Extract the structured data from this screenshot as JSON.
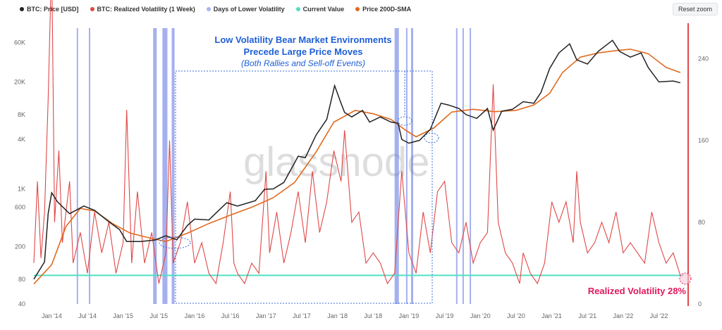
{
  "toolbar": {
    "reset_label": "Reset zoom"
  },
  "legend": [
    {
      "label": "BTC: Price [USD]",
      "color": "#222222"
    },
    {
      "label": "BTC: Realized Volatility (1 Week)",
      "color": "#e04848"
    },
    {
      "label": "Days of Lower Volatility",
      "color": "#a9b4f0"
    },
    {
      "label": "Current Value",
      "color": "#4fe0c3"
    },
    {
      "label": "Price 200D-SMA",
      "color": "#e06a1e"
    }
  ],
  "annotation": {
    "line1": "Low Volatility Bear Market Environments",
    "line2": "Precede Large Price Moves",
    "line3": "(Both Rallies and Sell-off Events)"
  },
  "watermark": "glassnode",
  "callout": "Realized Volatility 28%",
  "chart_data": {
    "type": "line",
    "x_ticks": [
      "Jan '14",
      "Jul '14",
      "Jan '15",
      "Jul '15",
      "Jan '16",
      "Jul '16",
      "Jan '17",
      "Jul '17",
      "Jan '18",
      "Jul '18",
      "Jan '19",
      "Jul '19",
      "Jan '20",
      "Jul '20",
      "Jan '21",
      "Jul '21",
      "Jan '22",
      "Jul '22"
    ],
    "y_left_ticks": [
      "40",
      "80",
      "200",
      "600",
      "1K",
      "4K",
      "8K",
      "20K",
      "60K"
    ],
    "y_left_scale": "log",
    "y_right_ticks": [
      "0",
      "80",
      "160",
      "240"
    ],
    "current_value": 28,
    "price_series": [
      [
        2013.75,
        80
      ],
      [
        2013.9,
        130
      ],
      [
        2013.95,
        500
      ],
      [
        2014.0,
        900
      ],
      [
        2014.08,
        700
      ],
      [
        2014.25,
        500
      ],
      [
        2014.45,
        620
      ],
      [
        2014.6,
        550
      ],
      [
        2014.8,
        400
      ],
      [
        2014.95,
        320
      ],
      [
        2015.05,
        230
      ],
      [
        2015.25,
        230
      ],
      [
        2015.45,
        240
      ],
      [
        2015.6,
        270
      ],
      [
        2015.75,
        240
      ],
      [
        2015.9,
        360
      ],
      [
        2016.0,
        430
      ],
      [
        2016.2,
        420
      ],
      [
        2016.45,
        680
      ],
      [
        2016.6,
        620
      ],
      [
        2016.85,
        720
      ],
      [
        2016.98,
        990
      ],
      [
        2017.1,
        1000
      ],
      [
        2017.25,
        1200
      ],
      [
        2017.45,
        2500
      ],
      [
        2017.55,
        2400
      ],
      [
        2017.7,
        4500
      ],
      [
        2017.85,
        7000
      ],
      [
        2017.96,
        18000
      ],
      [
        2018.05,
        11000
      ],
      [
        2018.1,
        8500
      ],
      [
        2018.2,
        7500
      ],
      [
        2018.35,
        9000
      ],
      [
        2018.45,
        6500
      ],
      [
        2018.6,
        7500
      ],
      [
        2018.75,
        6500
      ],
      [
        2018.85,
        6300
      ],
      [
        2018.9,
        4000
      ],
      [
        2019.0,
        3600
      ],
      [
        2019.15,
        3900
      ],
      [
        2019.3,
        5300
      ],
      [
        2019.45,
        11000
      ],
      [
        2019.55,
        10500
      ],
      [
        2019.7,
        9500
      ],
      [
        2019.8,
        8000
      ],
      [
        2019.95,
        7200
      ],
      [
        2020.1,
        9500
      ],
      [
        2020.18,
        5200
      ],
      [
        2020.3,
        8800
      ],
      [
        2020.45,
        9300
      ],
      [
        2020.6,
        11500
      ],
      [
        2020.75,
        11000
      ],
      [
        2020.85,
        15000
      ],
      [
        2020.97,
        29000
      ],
      [
        2021.1,
        45000
      ],
      [
        2021.25,
        58000
      ],
      [
        2021.35,
        37000
      ],
      [
        2021.5,
        33000
      ],
      [
        2021.65,
        47000
      ],
      [
        2021.85,
        64000
      ],
      [
        2021.95,
        47000
      ],
      [
        2022.1,
        40000
      ],
      [
        2022.25,
        45000
      ],
      [
        2022.35,
        30000
      ],
      [
        2022.5,
        20000
      ],
      [
        2022.7,
        20500
      ],
      [
        2022.8,
        19500
      ]
    ],
    "sma_series": [
      [
        2013.75,
        70
      ],
      [
        2014.0,
        120
      ],
      [
        2014.2,
        350
      ],
      [
        2014.4,
        580
      ],
      [
        2014.6,
        540
      ],
      [
        2014.85,
        380
      ],
      [
        2015.1,
        290
      ],
      [
        2015.4,
        250
      ],
      [
        2015.6,
        230
      ],
      [
        2015.9,
        290
      ],
      [
        2016.2,
        380
      ],
      [
        2016.5,
        480
      ],
      [
        2016.8,
        600
      ],
      [
        2017.1,
        780
      ],
      [
        2017.4,
        1200
      ],
      [
        2017.7,
        2800
      ],
      [
        2017.95,
        6500
      ],
      [
        2018.25,
        9000
      ],
      [
        2018.5,
        8200
      ],
      [
        2018.75,
        7000
      ],
      [
        2018.95,
        5200
      ],
      [
        2019.1,
        4300
      ],
      [
        2019.35,
        5500
      ],
      [
        2019.6,
        8600
      ],
      [
        2019.9,
        9300
      ],
      [
        2020.2,
        8700
      ],
      [
        2020.5,
        9000
      ],
      [
        2020.75,
        10500
      ],
      [
        2020.97,
        14500
      ],
      [
        2021.15,
        26000
      ],
      [
        2021.4,
        40000
      ],
      [
        2021.65,
        45000
      ],
      [
        2021.9,
        48000
      ],
      [
        2022.1,
        50000
      ],
      [
        2022.35,
        44000
      ],
      [
        2022.6,
        30000
      ],
      [
        2022.8,
        26000
      ]
    ],
    "volatility_series": [
      [
        2013.75,
        40
      ],
      [
        2013.8,
        120
      ],
      [
        2013.85,
        45
      ],
      [
        2013.9,
        90
      ],
      [
        2013.95,
        200
      ],
      [
        2014.0,
        340
      ],
      [
        2014.04,
        80
      ],
      [
        2014.1,
        150
      ],
      [
        2014.15,
        60
      ],
      [
        2014.25,
        120
      ],
      [
        2014.3,
        40
      ],
      [
        2014.4,
        70
      ],
      [
        2014.5,
        30
      ],
      [
        2014.6,
        90
      ],
      [
        2014.7,
        50
      ],
      [
        2014.8,
        80
      ],
      [
        2014.9,
        30
      ],
      [
        2015.0,
        60
      ],
      [
        2015.05,
        190
      ],
      [
        2015.12,
        40
      ],
      [
        2015.2,
        110
      ],
      [
        2015.3,
        40
      ],
      [
        2015.4,
        70
      ],
      [
        2015.5,
        20
      ],
      [
        2015.6,
        50
      ],
      [
        2015.65,
        160
      ],
      [
        2015.7,
        40
      ],
      [
        2015.8,
        60
      ],
      [
        2015.9,
        100
      ],
      [
        2016.0,
        40
      ],
      [
        2016.1,
        60
      ],
      [
        2016.2,
        30
      ],
      [
        2016.3,
        20
      ],
      [
        2016.4,
        60
      ],
      [
        2016.5,
        110
      ],
      [
        2016.55,
        40
      ],
      [
        2016.6,
        30
      ],
      [
        2016.7,
        20
      ],
      [
        2016.8,
        40
      ],
      [
        2016.9,
        30
      ],
      [
        2017.0,
        130
      ],
      [
        2017.05,
        50
      ],
      [
        2017.15,
        90
      ],
      [
        2017.25,
        40
      ],
      [
        2017.35,
        70
      ],
      [
        2017.45,
        110
      ],
      [
        2017.55,
        60
      ],
      [
        2017.65,
        130
      ],
      [
        2017.75,
        70
      ],
      [
        2017.85,
        100
      ],
      [
        2017.95,
        150
      ],
      [
        2018.05,
        120
      ],
      [
        2018.1,
        170
      ],
      [
        2018.2,
        80
      ],
      [
        2018.3,
        90
      ],
      [
        2018.4,
        40
      ],
      [
        2018.5,
        50
      ],
      [
        2018.6,
        40
      ],
      [
        2018.7,
        20
      ],
      [
        2018.8,
        30
      ],
      [
        2018.9,
        130
      ],
      [
        2019.0,
        50
      ],
      [
        2019.1,
        30
      ],
      [
        2019.2,
        90
      ],
      [
        2019.3,
        50
      ],
      [
        2019.4,
        110
      ],
      [
        2019.5,
        120
      ],
      [
        2019.6,
        60
      ],
      [
        2019.7,
        50
      ],
      [
        2019.8,
        80
      ],
      [
        2019.9,
        40
      ],
      [
        2020.0,
        60
      ],
      [
        2020.1,
        70
      ],
      [
        2020.18,
        215
      ],
      [
        2020.25,
        80
      ],
      [
        2020.35,
        50
      ],
      [
        2020.45,
        40
      ],
      [
        2020.55,
        20
      ],
      [
        2020.6,
        50
      ],
      [
        2020.7,
        30
      ],
      [
        2020.8,
        20
      ],
      [
        2020.9,
        40
      ],
      [
        2021.0,
        100
      ],
      [
        2021.1,
        80
      ],
      [
        2021.2,
        100
      ],
      [
        2021.3,
        60
      ],
      [
        2021.35,
        130
      ],
      [
        2021.4,
        80
      ],
      [
        2021.5,
        50
      ],
      [
        2021.6,
        60
      ],
      [
        2021.7,
        80
      ],
      [
        2021.8,
        60
      ],
      [
        2021.9,
        90
      ],
      [
        2022.0,
        50
      ],
      [
        2022.1,
        60
      ],
      [
        2022.2,
        50
      ],
      [
        2022.3,
        40
      ],
      [
        2022.4,
        90
      ],
      [
        2022.5,
        60
      ],
      [
        2022.6,
        40
      ],
      [
        2022.7,
        50
      ],
      [
        2022.8,
        28
      ]
    ],
    "low_volatility_bands": [
      [
        2014.35,
        2014.36
      ],
      [
        2014.52,
        2014.53
      ],
      [
        2015.42,
        2015.47
      ],
      [
        2015.55,
        2015.62
      ],
      [
        2015.68,
        2015.72
      ],
      [
        2018.8,
        2018.86
      ],
      [
        2018.96,
        2018.98
      ],
      [
        2019.03,
        2019.06
      ],
      [
        2019.66,
        2019.67
      ],
      [
        2019.75,
        2019.76
      ],
      [
        2019.85,
        2019.86
      ]
    ],
    "x_range": [
      2013.75,
      2022.85
    ],
    "left_ylim": [
      40,
      90000
    ],
    "right_ylim": [
      0,
      270
    ]
  }
}
